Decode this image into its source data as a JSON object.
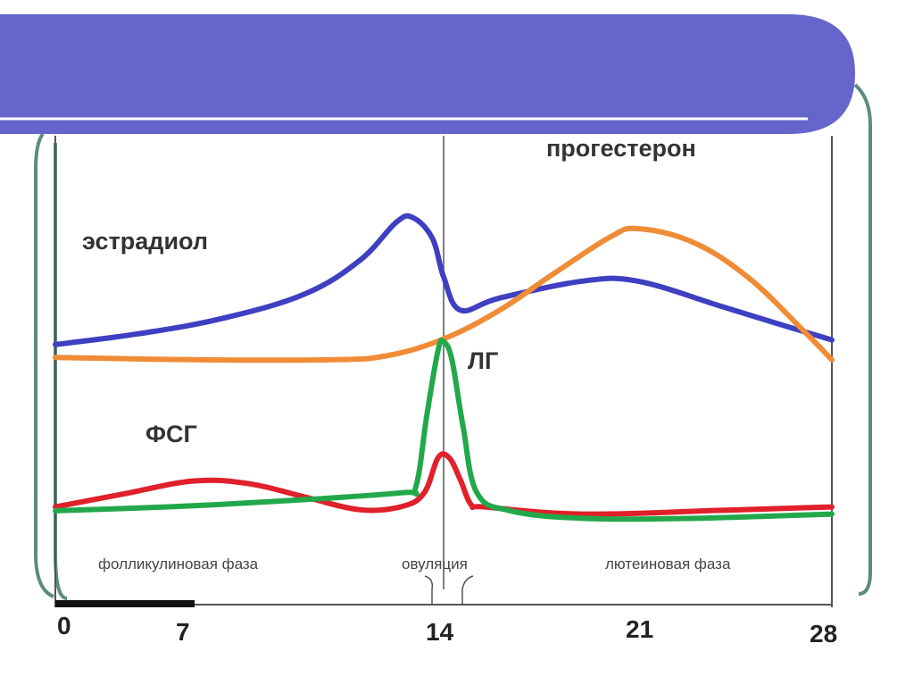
{
  "colors": {
    "header_bar": "#6565cc",
    "frame": "#5a8c80",
    "estradiol": "#3f3fc2",
    "progesterone": "#f08c36",
    "lh": "#22a84a",
    "fsh": "#e0202a"
  },
  "chart_data": {
    "type": "line",
    "title": "",
    "xlabel": "",
    "ylabel": "",
    "xlim": [
      0,
      28
    ],
    "ylim": [
      0,
      100
    ],
    "grid": false,
    "x_ticks": [
      "0",
      "7",
      "14",
      "21",
      "28"
    ],
    "x_tick_values": [
      0,
      7,
      14,
      21,
      28
    ],
    "ovulation_day": 14,
    "series": [
      {
        "name": "эстрадиол",
        "key": "estradiol",
        "color": "#3f3fc2",
        "x": [
          0,
          3,
          6,
          9,
          11,
          12.3,
          12.9,
          13.6,
          14.0,
          14.6,
          16,
          19,
          21,
          24,
          26,
          28
        ],
        "y": [
          55.5,
          57.8,
          61,
          66.2,
          73.4,
          81.4,
          82.3,
          77.9,
          69.8,
          62.8,
          65.3,
          68.9,
          68.9,
          63.6,
          60,
          56.5
        ]
      },
      {
        "name": "прогестерон",
        "key": "progesterone",
        "color": "#f08c36",
        "x": [
          0,
          5,
          10,
          12,
          14,
          16,
          18,
          20,
          21,
          23,
          25,
          27,
          28
        ],
        "y": [
          52.8,
          52.3,
          52.3,
          53.2,
          56.7,
          62.7,
          70.6,
          78.2,
          80,
          77.1,
          69.6,
          58.3,
          52.3
        ]
      },
      {
        "name": "ЛГ",
        "key": "lh",
        "color": "#22a84a",
        "x": [
          0,
          4,
          8,
          12.5,
          13.0,
          13.4,
          13.8,
          14.0,
          14.3,
          14.7,
          15.2,
          16.4,
          19,
          23,
          28
        ],
        "y": [
          20.4,
          21.2,
          22.4,
          24.2,
          25.5,
          40.8,
          54.3,
          56.1,
          52.3,
          38.2,
          24.2,
          20.4,
          18.8,
          18.8,
          19.7
        ]
      },
      {
        "name": "ФСГ",
        "key": "fsh",
        "color": "#e0202a",
        "x": [
          0,
          2.5,
          5,
          7,
          9,
          11,
          12.5,
          13.3,
          13.8,
          14.2,
          14.6,
          15.0,
          15.5,
          19,
          24,
          28
        ],
        "y": [
          21.2,
          24,
          26.7,
          26.1,
          23.3,
          20.6,
          21.3,
          24.2,
          31.6,
          31.6,
          27,
          21.6,
          21.2,
          19.7,
          20.5,
          21.2
        ]
      }
    ],
    "series_labels": {
      "estradiol": "эстрадиол",
      "progesterone": "прогестерон",
      "lh": "ЛГ",
      "fsh": "ФСГ"
    },
    "phase_labels": {
      "follicular": "фолликулиновая фаза",
      "ovulation": "овуляция",
      "luteal": "лютеиновая фаза"
    }
  }
}
